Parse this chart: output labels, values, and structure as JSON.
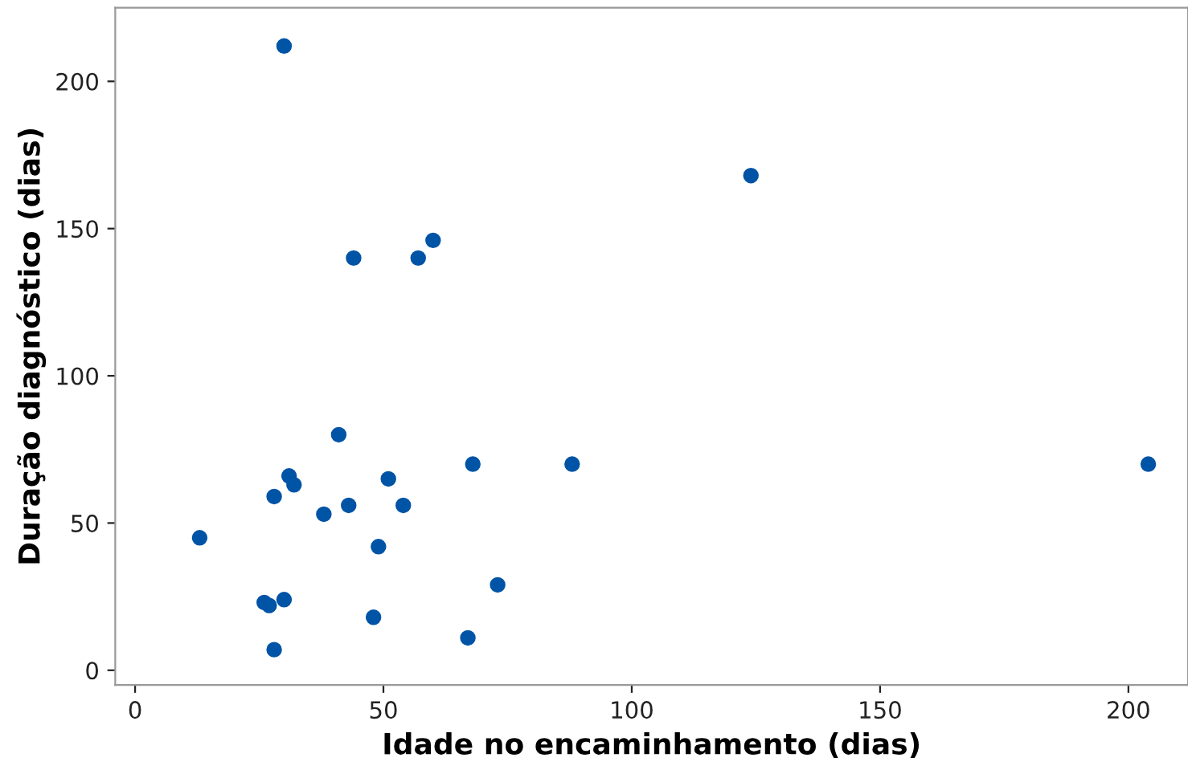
{
  "chart_data": {
    "type": "scatter",
    "xlabel": "Idade no encaminhamento (dias)",
    "ylabel": "Duração diagnóstico (dias)",
    "x": [
      30,
      124,
      60,
      44,
      57,
      41,
      68,
      88,
      204,
      31,
      32,
      51,
      28,
      38,
      43,
      54,
      13,
      49,
      26,
      27,
      30,
      48,
      73,
      28,
      67
    ],
    "series": [
      {
        "color": "#0054a6",
        "values": [
          212,
          168,
          146,
          140,
          140,
          80,
          70,
          70,
          70,
          66,
          63,
          65,
          59,
          53,
          56,
          56,
          45,
          42,
          23,
          22,
          24,
          18,
          29,
          7,
          11
        ]
      }
    ],
    "xlim": [
      -4,
      212
    ],
    "ylim": [
      -5,
      225
    ],
    "xticks": [
      0,
      50,
      100,
      150,
      200
    ],
    "yticks": [
      0,
      50,
      100,
      150,
      200
    ],
    "grid": false,
    "marker": "circle"
  }
}
